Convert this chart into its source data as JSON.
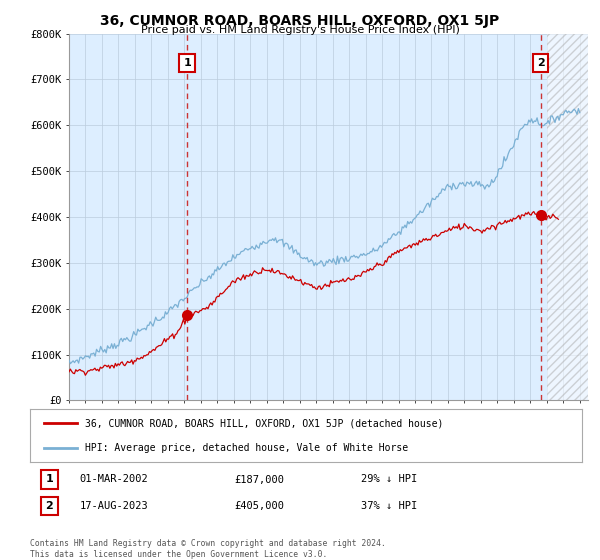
{
  "title": "36, CUMNOR ROAD, BOARS HILL, OXFORD, OX1 5JP",
  "subtitle": "Price paid vs. HM Land Registry's House Price Index (HPI)",
  "ylabel_ticks": [
    "£0",
    "£100K",
    "£200K",
    "£300K",
    "£400K",
    "£500K",
    "£600K",
    "£700K",
    "£800K"
  ],
  "ytick_values": [
    0,
    100000,
    200000,
    300000,
    400000,
    500000,
    600000,
    700000,
    800000
  ],
  "ylim": [
    0,
    800000
  ],
  "xlim_start": 1995.0,
  "xlim_end": 2026.5,
  "transaction1_x": 2002.17,
  "transaction1_y": 187000,
  "transaction1_label": "1",
  "transaction1_date": "01-MAR-2002",
  "transaction1_price": "£187,000",
  "transaction1_hpi": "29% ↓ HPI",
  "transaction2_x": 2023.63,
  "transaction2_y": 405000,
  "transaction2_label": "2",
  "transaction2_date": "17-AUG-2023",
  "transaction2_price": "£405,000",
  "transaction2_hpi": "37% ↓ HPI",
  "legend_property": "36, CUMNOR ROAD, BOARS HILL, OXFORD, OX1 5JP (detached house)",
  "legend_hpi": "HPI: Average price, detached house, Vale of White Horse",
  "footer": "Contains HM Land Registry data © Crown copyright and database right 2024.\nThis data is licensed under the Open Government Licence v3.0.",
  "line_color_property": "#cc0000",
  "line_color_hpi": "#7ab0d4",
  "vline_color": "#cc3333",
  "chart_bg": "#ddeeff",
  "background_color": "#ffffff",
  "grid_color": "#bbccdd",
  "hatch_color": "#bbbbbb"
}
